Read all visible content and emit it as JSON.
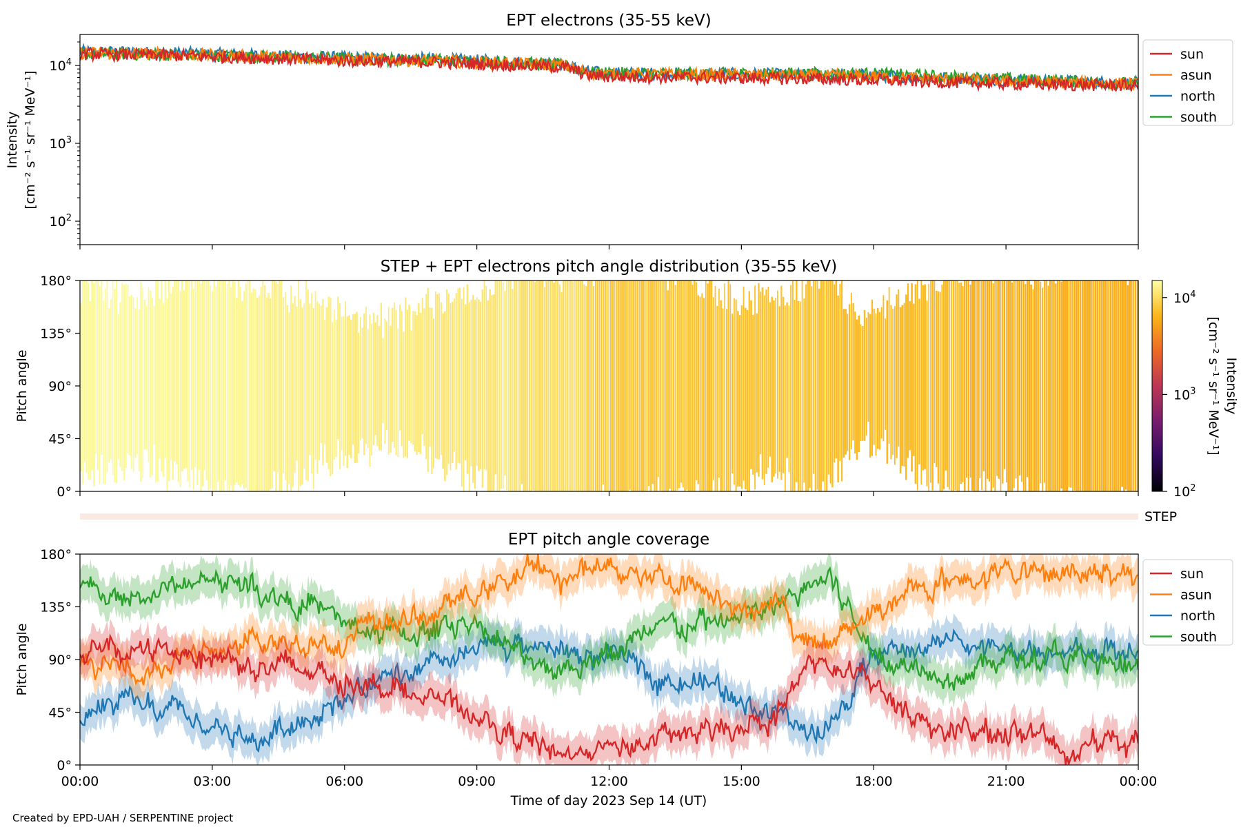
{
  "figure": {
    "footer": "Created by EPD-UAH / SERPENTINE project",
    "xlabel": "Time of day 2023 Sep 14 (UT)",
    "x_tick_labels": [
      "00:00",
      "03:00",
      "06:00",
      "09:00",
      "12:00",
      "15:00",
      "18:00",
      "21:00",
      "00:00"
    ]
  },
  "colors": {
    "sun": "#d62728",
    "asun": "#ff7f0e",
    "north": "#1f77b4",
    "south": "#2ca02c",
    "step_bar": "#fde9e3"
  },
  "step_label": "STEP",
  "chart_data": [
    {
      "type": "line",
      "title": "EPT electrons (35-55 keV)",
      "ylabel_line1": "Intensity",
      "ylabel_line2": "[cm⁻² s⁻¹ sr⁻¹ MeV⁻¹]",
      "yscale": "log",
      "ylim": [
        50,
        25000
      ],
      "y_ticks": [
        {
          "value": 100,
          "base": "10",
          "exp": "2"
        },
        {
          "value": 1000,
          "base": "10",
          "exp": "3"
        },
        {
          "value": 10000,
          "base": "10",
          "exp": "4"
        }
      ],
      "x_unit": "hours since 2023-09-14 00:00 UT",
      "xlim": [
        0,
        24
      ],
      "legend": [
        "sun",
        "asun",
        "north",
        "south"
      ],
      "legend_position": "outside-right",
      "series": [
        {
          "name": "sun",
          "x": [
            0,
            2,
            4,
            6,
            8,
            10,
            11,
            11.5,
            12,
            14,
            16,
            18,
            20,
            22,
            24
          ],
          "values": [
            14000,
            13500,
            12500,
            11500,
            11000,
            10000,
            9500,
            7500,
            7200,
            7000,
            6800,
            6500,
            6000,
            5700,
            5500
          ]
        },
        {
          "name": "asun",
          "x": [
            0,
            2,
            4,
            6,
            8,
            10,
            11,
            11.5,
            12,
            14,
            16,
            18,
            20,
            22,
            24
          ],
          "values": [
            14500,
            14000,
            13000,
            12000,
            11500,
            10500,
            10000,
            8000,
            7800,
            7600,
            7500,
            7200,
            6500,
            6100,
            5800
          ]
        },
        {
          "name": "north",
          "x": [
            0,
            2,
            4,
            6,
            8,
            10,
            11,
            11.5,
            12,
            14,
            16,
            18,
            20,
            22,
            24
          ],
          "values": [
            15000,
            14500,
            13500,
            12500,
            12000,
            11000,
            10200,
            8200,
            8000,
            7800,
            7600,
            7500,
            6800,
            6300,
            5900
          ]
        },
        {
          "name": "south",
          "x": [
            0,
            2,
            4,
            6,
            8,
            10,
            11,
            11.5,
            12,
            14,
            16,
            18,
            20,
            22,
            24
          ],
          "values": [
            14200,
            13800,
            13000,
            12200,
            11800,
            10800,
            10000,
            8100,
            8000,
            7800,
            7900,
            7800,
            7000,
            6400,
            5800
          ]
        }
      ]
    },
    {
      "type": "heatmap",
      "title": "STEP + EPT electrons pitch angle distribution (35-55 keV)",
      "ylabel": "Pitch angle",
      "ylim": [
        0,
        180
      ],
      "y_tick_labels": [
        "0°",
        "45°",
        "90°",
        "135°",
        "180°"
      ],
      "colorbar": {
        "label_line1": "Intensity",
        "label_line2": "[cm⁻² s⁻¹ sr⁻¹ MeV⁻¹]",
        "scale": "log",
        "range": [
          100,
          15000
        ],
        "ticks": [
          {
            "value": 100,
            "base": "10",
            "exp": "2"
          },
          {
            "value": 1000,
            "base": "10",
            "exp": "3"
          },
          {
            "value": 10000,
            "base": "10",
            "exp": "4"
          }
        ],
        "colormap": [
          "#000004",
          "#320a5e",
          "#781c6d",
          "#bc3754",
          "#ed6925",
          "#fbb61a",
          "#fcffa4"
        ]
      },
      "segments": [
        {
          "x0": 0,
          "x1": 2,
          "intensity": 14000
        },
        {
          "x0": 2,
          "x1": 4,
          "intensity": 13500
        },
        {
          "x0": 4,
          "x1": 6,
          "intensity": 12500
        },
        {
          "x0": 6,
          "x1": 8,
          "intensity": 11800
        },
        {
          "x0": 8,
          "x1": 10,
          "intensity": 11200
        },
        {
          "x0": 10,
          "x1": 11.5,
          "intensity": 10200
        },
        {
          "x0": 11.5,
          "x1": 14,
          "intensity": 7800
        },
        {
          "x0": 14,
          "x1": 17,
          "intensity": 7400
        },
        {
          "x0": 17,
          "x1": 20,
          "intensity": 6800
        },
        {
          "x0": 20,
          "x1": 24,
          "intensity": 6000
        }
      ]
    },
    {
      "type": "line",
      "title": "EPT pitch angle coverage",
      "ylabel": "Pitch angle",
      "ylim": [
        0,
        180
      ],
      "y_tick_labels": [
        "0°",
        "45°",
        "90°",
        "135°",
        "180°"
      ],
      "x_unit": "hours since 2023-09-14 00:00 UT",
      "xlim": [
        0,
        24
      ],
      "legend": [
        "sun",
        "asun",
        "north",
        "south"
      ],
      "legend_position": "outside-right",
      "band_halfwidth_deg": 15,
      "series": [
        {
          "name": "sun",
          "x": [
            0,
            1,
            2,
            3,
            4,
            5,
            6,
            7,
            8,
            9,
            10,
            11,
            12,
            13,
            14,
            15,
            16,
            16.5,
            17,
            18,
            19,
            20,
            21,
            22,
            23,
            24
          ],
          "values": [
            90,
            95,
            100,
            95,
            85,
            80,
            75,
            70,
            55,
            40,
            20,
            10,
            15,
            20,
            25,
            35,
            50,
            90,
            80,
            70,
            40,
            25,
            30,
            20,
            15,
            20
          ]
        },
        {
          "name": "asun",
          "x": [
            0,
            1,
            2,
            3,
            4,
            5,
            6,
            7,
            8,
            9,
            10,
            11,
            12,
            13,
            14,
            15,
            16,
            16.5,
            17,
            18,
            19,
            20,
            21,
            22,
            23,
            24
          ],
          "values": [
            85,
            80,
            90,
            95,
            100,
            105,
            110,
            120,
            130,
            145,
            165,
            160,
            170,
            165,
            150,
            135,
            130,
            100,
            110,
            130,
            150,
            160,
            165,
            160,
            170,
            165
          ]
        },
        {
          "name": "north",
          "x": [
            0,
            1,
            2,
            3,
            4,
            5,
            6,
            7,
            8,
            9,
            10,
            11,
            12,
            13,
            14,
            15,
            16,
            16.5,
            17,
            18,
            19,
            20,
            21,
            22,
            23,
            24
          ],
          "values": [
            40,
            50,
            45,
            30,
            20,
            40,
            60,
            70,
            80,
            95,
            105,
            95,
            90,
            80,
            70,
            60,
            40,
            25,
            30,
            95,
            100,
            110,
            95,
            90,
            100,
            95
          ]
        },
        {
          "name": "south",
          "x": [
            0,
            1,
            2,
            3,
            4,
            5,
            6,
            7,
            8,
            9,
            10,
            11,
            12,
            13,
            14,
            15,
            16,
            16.5,
            17,
            18,
            19,
            20,
            21,
            22,
            23,
            24
          ],
          "values": [
            150,
            140,
            150,
            160,
            150,
            140,
            120,
            110,
            115,
            125,
            90,
            85,
            95,
            110,
            120,
            125,
            135,
            155,
            160,
            95,
            85,
            80,
            90,
            95,
            85,
            80
          ]
        }
      ]
    }
  ]
}
